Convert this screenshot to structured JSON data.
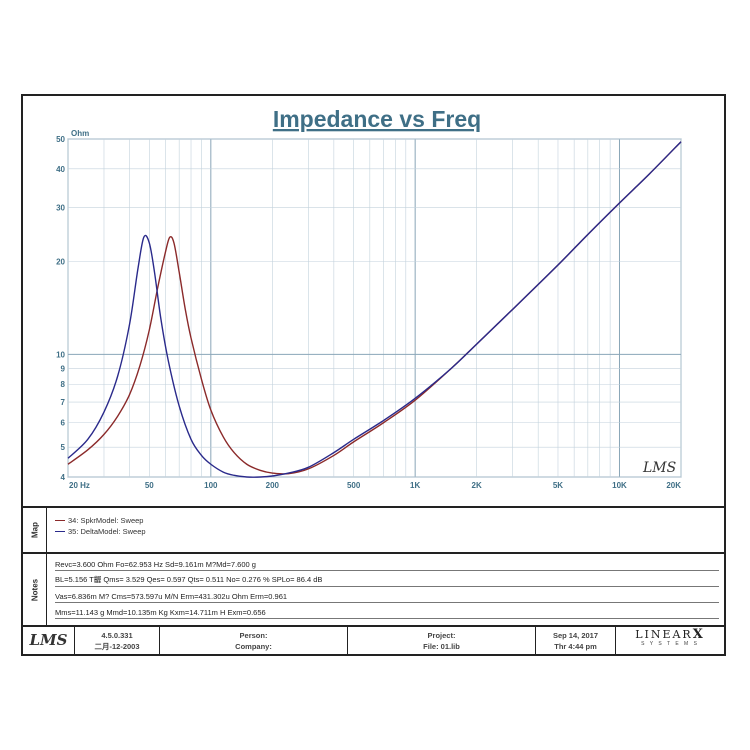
{
  "chart_data": {
    "type": "line",
    "title": "Impedance vs Freq",
    "ylabel": "Ohm",
    "xscale": "log",
    "yscale": "log",
    "xlim": [
      20,
      20000
    ],
    "ylim": [
      4,
      50
    ],
    "grid": true,
    "x_tick_labels": [
      {
        "v": 20,
        "t": "20 Hz"
      },
      {
        "v": 50,
        "t": "50"
      },
      {
        "v": 100,
        "t": "100"
      },
      {
        "v": 200,
        "t": "200"
      },
      {
        "v": 500,
        "t": "500"
      },
      {
        "v": 1000,
        "t": "1K"
      },
      {
        "v": 2000,
        "t": "2K"
      },
      {
        "v": 5000,
        "t": "5K"
      },
      {
        "v": 10000,
        "t": "10K"
      },
      {
        "v": 20000,
        "t": "20K"
      }
    ],
    "y_tick_labels": [
      {
        "v": 4,
        "t": "4"
      },
      {
        "v": 5,
        "t": "5"
      },
      {
        "v": 6,
        "t": "6"
      },
      {
        "v": 7,
        "t": "7"
      },
      {
        "v": 8,
        "t": "8"
      },
      {
        "v": 9,
        "t": "9"
      },
      {
        "v": 10,
        "t": "10"
      },
      {
        "v": 20,
        "t": "20"
      },
      {
        "v": 30,
        "t": "30"
      },
      {
        "v": 40,
        "t": "40"
      },
      {
        "v": 50,
        "t": "50"
      }
    ],
    "series": [
      {
        "name": "34: SpkrModel: Sweep",
        "color": "#8b2a2a",
        "x": [
          20,
          25,
          30,
          35,
          40,
          45,
          50,
          55,
          60,
          62.953,
          66,
          70,
          75,
          80,
          90,
          100,
          115,
          130,
          150,
          175,
          200,
          240,
          300,
          400,
          500,
          700,
          1000,
          1500,
          2000,
          3000,
          5000,
          7000,
          10000,
          14000,
          20000
        ],
        "y": [
          4.4,
          4.9,
          5.5,
          6.3,
          7.4,
          9.2,
          12.0,
          16.5,
          21.5,
          24.0,
          23.0,
          18.5,
          14.0,
          11.3,
          8.3,
          6.6,
          5.4,
          4.8,
          4.4,
          4.2,
          4.12,
          4.1,
          4.25,
          4.7,
          5.2,
          6.0,
          7.1,
          9.0,
          10.8,
          14.0,
          19.5,
          24.5,
          31.0,
          38.5,
          49.0
        ]
      },
      {
        "name": "35: DeltaModel: Sweep",
        "color": "#2a2a8b",
        "x": [
          20,
          25,
          30,
          35,
          40,
          44,
          47,
          50,
          53,
          57,
          62,
          70,
          80,
          90,
          100,
          115,
          130,
          150,
          175,
          200,
          240,
          300,
          400,
          500,
          700,
          1000,
          1500,
          2000,
          3000,
          5000,
          7000,
          10000,
          14000,
          20000
        ],
        "y": [
          4.6,
          5.3,
          6.5,
          8.5,
          12.5,
          19.0,
          24.0,
          23.0,
          18.5,
          13.0,
          9.5,
          6.8,
          5.3,
          4.7,
          4.4,
          4.15,
          4.05,
          4.0,
          4.0,
          4.03,
          4.12,
          4.3,
          4.8,
          5.3,
          6.1,
          7.2,
          9.0,
          10.8,
          14.0,
          19.5,
          24.5,
          31.0,
          38.5,
          49.0
        ]
      }
    ]
  },
  "watermark": "LMS",
  "legend": [
    {
      "label": "34: SpkrModel: Sweep",
      "color": "#8b2a2a"
    },
    {
      "label": "35: DeltaModel: Sweep",
      "color": "#2a2a8b"
    }
  ],
  "sections": {
    "map": "Map",
    "notes": "Notes"
  },
  "notes": [
    "Revc=3.600 Ohm  Fo=62.953 Hz  Sd=9.161m M?Md=7.600 g",
    "BL=5.156 T齷  Qms= 3.529  Qes= 0.597  Qts= 0.511  No= 0.276 %  SPLo= 86.4 dB",
    "Vas=6.836m M? Cms=573.597u M/N  Erm=431.302u Ohm  Erm=0.961",
    "Mms=11.143 g  Mmd=10.135m Kg  Kxm=14.711m H  Exm=0.656"
  ],
  "footer": {
    "logo": "LMS",
    "version": "4.5.0.331",
    "date": "二月-12-2003",
    "person_label": "Person:",
    "company_label": "Company:",
    "project_label": "Project:",
    "file_label": "File: 01.lib",
    "date2": "Sep 14, 2017",
    "time": "Thr  4:44 pm",
    "brand": "LINEAR",
    "brand_x": "X",
    "brand_sub": "S Y S T E M S"
  }
}
